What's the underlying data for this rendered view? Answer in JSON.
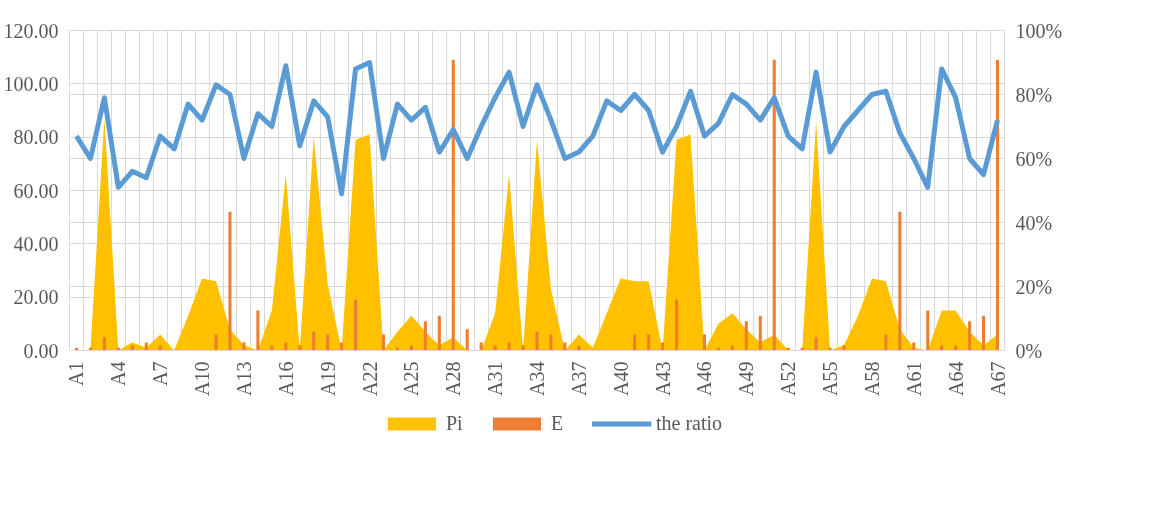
{
  "chart_data": {
    "type": "line",
    "categories": [
      "A1",
      null,
      null,
      "A4",
      null,
      null,
      "A7",
      null,
      null,
      "A10",
      null,
      null,
      "A13",
      null,
      null,
      "A16",
      null,
      null,
      "A19",
      null,
      null,
      "A22",
      null,
      null,
      "A25",
      null,
      null,
      "A28",
      null,
      null,
      "A31",
      null,
      null,
      "A34",
      null,
      null,
      "A37",
      null,
      null,
      "A40",
      null,
      null,
      "A43",
      null,
      null,
      "A46",
      null,
      null,
      "A49",
      null,
      null,
      "A52",
      null,
      null,
      "A55",
      null,
      null,
      "A58",
      null,
      null,
      "A61",
      null,
      null,
      "A64",
      null,
      null,
      "A67"
    ],
    "series": [
      {
        "name": "Pi",
        "type": "area",
        "color": "#ffc000",
        "values": [
          0,
          0,
          87,
          0,
          3,
          1,
          6,
          0,
          13,
          27,
          26,
          8,
          2,
          0,
          15,
          66,
          0,
          80,
          25,
          0,
          79,
          81,
          0,
          7,
          13,
          7,
          2,
          5,
          0,
          0,
          14,
          66,
          0,
          79,
          23,
          0,
          6,
          1,
          14,
          27,
          26,
          26,
          0,
          79,
          81,
          0,
          10,
          14,
          8,
          3,
          6,
          0,
          0,
          86,
          0,
          2,
          13,
          27,
          26,
          8,
          1,
          0,
          15,
          15,
          7,
          2,
          6
        ]
      },
      {
        "name": "E",
        "type": "bar",
        "color": "#ed7d31",
        "values": [
          1,
          1,
          5,
          1,
          2,
          3,
          2,
          0,
          0,
          0,
          6,
          52,
          3,
          15,
          2,
          3,
          2,
          7,
          6,
          3,
          19,
          0,
          6,
          1,
          2,
          11,
          13,
          109,
          8,
          3,
          2,
          3,
          2,
          7,
          6,
          3,
          2,
          0,
          0,
          0,
          6,
          6,
          3,
          19,
          0,
          6,
          1,
          2,
          11,
          13,
          109,
          1,
          1,
          5,
          1,
          2,
          0,
          0,
          6,
          52,
          3,
          15,
          2,
          2,
          11,
          13,
          109
        ]
      },
      {
        "name": "the ratio",
        "axis": "y2",
        "color": "#5b9bd5",
        "values": [
          67,
          60,
          79,
          51,
          56,
          54,
          67,
          63,
          77,
          72,
          83,
          80,
          60,
          74,
          70,
          89,
          64,
          78,
          73,
          49,
          88,
          90,
          60,
          77,
          72,
          76,
          62,
          69,
          60,
          70,
          79,
          87,
          70,
          83,
          72,
          60,
          62,
          67,
          78,
          75,
          80,
          75,
          62,
          70,
          81,
          67,
          71,
          80,
          77,
          72,
          79,
          67,
          63,
          87,
          62,
          70,
          75,
          80,
          81,
          68,
          60,
          51,
          88,
          79,
          60,
          55,
          72
        ]
      }
    ],
    "ylim": [
      0,
      120
    ],
    "yticks": [
      {
        "value": 0,
        "label": "0.00"
      },
      {
        "value": 20,
        "label": "20.00"
      },
      {
        "value": 40,
        "label": "40.00"
      },
      {
        "value": 60,
        "label": "60.00"
      },
      {
        "value": 80,
        "label": "80.00"
      },
      {
        "value": 100,
        "label": "100.00"
      },
      {
        "value": 120,
        "label": "120.00"
      }
    ],
    "y2lim": [
      0,
      100
    ],
    "y2ticks": [
      {
        "value": 0,
        "label": "0%"
      },
      {
        "value": 20,
        "label": "20%"
      },
      {
        "value": 40,
        "label": "40%"
      },
      {
        "value": 60,
        "label": "60%"
      },
      {
        "value": 80,
        "label": "80%"
      },
      {
        "value": 100,
        "label": "100%"
      }
    ],
    "grid": true,
    "legend": "bottom"
  }
}
